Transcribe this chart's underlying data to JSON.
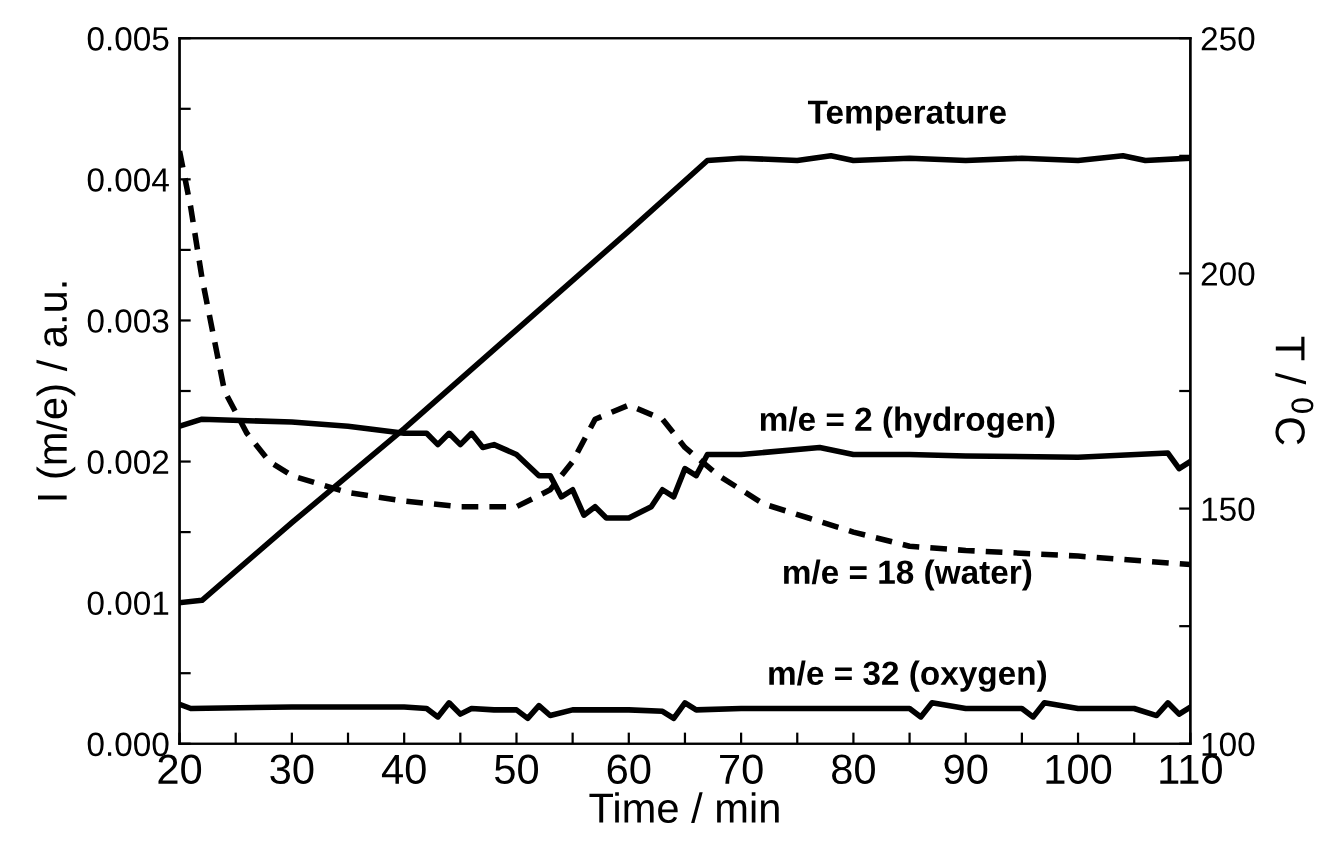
{
  "chart_data": {
    "type": "line",
    "xlabel": "Time / min",
    "ylabel": "I (m/e) / a.u.",
    "y2label": "T / $^{0}$C",
    "xlim": [
      20,
      110
    ],
    "xticks": [
      20,
      {
        "value": 25,
        "label": null
      },
      30,
      {
        "value": 35,
        "label": null
      },
      40,
      {
        "value": 45,
        "label": null
      },
      50,
      {
        "value": 55,
        "label": null
      },
      60,
      {
        "value": 65,
        "label": null
      },
      70,
      {
        "value": 75,
        "label": null
      },
      80,
      {
        "value": 85,
        "label": null
      },
      90,
      {
        "value": 95,
        "label": null
      },
      100,
      {
        "value": 105,
        "label": null
      },
      110
    ],
    "ylim": [
      0,
      0.005
    ],
    "yticks": [
      {
        "value": 0,
        "label": "0.000"
      },
      {
        "value": 0.0005,
        "label": null
      },
      0.001,
      {
        "value": 0.0015,
        "label": null
      },
      0.002,
      {
        "value": 0.0025,
        "label": null
      },
      0.003,
      {
        "value": 0.0035,
        "label": null
      },
      0.004,
      {
        "value": 0.0045,
        "label": null
      },
      0.005
    ],
    "y2lim": [
      100,
      250
    ],
    "y2ticks": [
      100,
      {
        "value": 125,
        "label": null
      },
      150,
      {
        "value": 175,
        "label": null
      },
      200,
      {
        "value": 225,
        "label": null
      },
      250
    ],
    "grid": false,
    "legend": false,
    "marker": "none",
    "series": [
      {
        "name": "Temperature",
        "color": "#000000",
        "axis": "y2",
        "line_style": "solid",
        "x": [
          20,
          22,
          30,
          40,
          50,
          60,
          67,
          70,
          75,
          78,
          80,
          85,
          90,
          95,
          100,
          104,
          106,
          110
        ],
        "values": [
          130,
          130.5,
          147,
          167,
          188,
          209,
          224,
          224.5,
          224,
          225,
          224,
          224.5,
          224,
          224.5,
          224,
          225,
          224,
          224.5
        ]
      },
      {
        "name": "m/e = 2 (hydrogen)",
        "color": "#000000",
        "line_style": "solid",
        "x": [
          20,
          22,
          30,
          35,
          40,
          42,
          43,
          44,
          45,
          46,
          47,
          48,
          50,
          52,
          53,
          54,
          55,
          56,
          57,
          58,
          60,
          62,
          63,
          64,
          65,
          66,
          67,
          70,
          77,
          80,
          85,
          90,
          100,
          108,
          109,
          110
        ],
        "values": [
          0.00225,
          0.0023,
          0.00228,
          0.00225,
          0.0022,
          0.0022,
          0.00212,
          0.0022,
          0.00212,
          0.0022,
          0.0021,
          0.00212,
          0.00205,
          0.0019,
          0.0019,
          0.00175,
          0.0018,
          0.00162,
          0.00168,
          0.0016,
          0.0016,
          0.00168,
          0.0018,
          0.00175,
          0.00195,
          0.0019,
          0.00205,
          0.00205,
          0.0021,
          0.00205,
          0.00205,
          0.00204,
          0.00203,
          0.00206,
          0.00195,
          0.002
        ]
      },
      {
        "name": "m/e = 18 (water)",
        "color": "#000000",
        "line_style": "dashed",
        "x": [
          20,
          21,
          22,
          23,
          24,
          26,
          28,
          30,
          35,
          40,
          45,
          50,
          53,
          55,
          57,
          60,
          63,
          65,
          68,
          72,
          76,
          80,
          85,
          90,
          100,
          110
        ],
        "values": [
          0.0042,
          0.0038,
          0.0033,
          0.0029,
          0.0025,
          0.0022,
          0.002,
          0.0019,
          0.00178,
          0.00172,
          0.00168,
          0.00168,
          0.0018,
          0.002,
          0.0023,
          0.0024,
          0.0023,
          0.0021,
          0.0019,
          0.0017,
          0.0016,
          0.0015,
          0.0014,
          0.00137,
          0.00133,
          0.00127
        ]
      },
      {
        "name": "m/e = 32 (oxygen)",
        "color": "#000000",
        "line_style": "solid",
        "x": [
          20,
          21,
          30,
          40,
          42,
          43,
          44,
          45,
          46,
          48,
          50,
          51,
          52,
          53,
          55,
          60,
          63,
          64,
          65,
          66,
          70,
          80,
          85,
          86,
          87,
          90,
          95,
          96,
          97,
          100,
          105,
          107,
          108,
          109,
          110
        ],
        "values": [
          0.00028,
          0.00025,
          0.00026,
          0.00026,
          0.00025,
          0.00019,
          0.00029,
          0.00021,
          0.00025,
          0.00024,
          0.00024,
          0.00018,
          0.00027,
          0.0002,
          0.00024,
          0.00024,
          0.00023,
          0.00018,
          0.00029,
          0.00024,
          0.00025,
          0.00025,
          0.00025,
          0.00019,
          0.00029,
          0.00025,
          0.00025,
          0.00019,
          0.00029,
          0.00025,
          0.00025,
          0.0002,
          0.00029,
          0.00021,
          0.00026
        ]
      }
    ]
  }
}
